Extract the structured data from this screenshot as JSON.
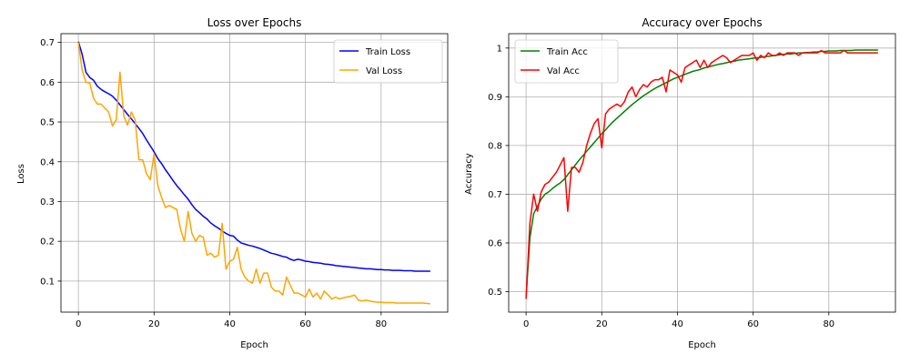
{
  "chart_data": [
    {
      "type": "line",
      "title": "Loss over Epochs",
      "xlabel": "Epoch",
      "ylabel": "Loss",
      "xlim": [
        -4.6,
        97.6
      ],
      "ylim": [
        0.022,
        0.722
      ],
      "xticks": [
        0,
        20,
        40,
        60,
        80
      ],
      "yticks": [
        0.1,
        0.2,
        0.3,
        0.4,
        0.5,
        0.6,
        0.7
      ],
      "grid": true,
      "legend": "top-right",
      "x": [
        0,
        1,
        2,
        3,
        4,
        5,
        6,
        7,
        8,
        9,
        10,
        11,
        12,
        13,
        14,
        15,
        16,
        17,
        18,
        19,
        20,
        21,
        22,
        23,
        24,
        25,
        26,
        27,
        28,
        29,
        30,
        31,
        32,
        33,
        34,
        35,
        36,
        37,
        38,
        39,
        40,
        41,
        42,
        43,
        44,
        45,
        46,
        47,
        48,
        49,
        50,
        51,
        52,
        53,
        54,
        55,
        56,
        57,
        58,
        59,
        60,
        61,
        62,
        63,
        64,
        65,
        66,
        67,
        68,
        69,
        70,
        71,
        72,
        73,
        74,
        75,
        76,
        77,
        78,
        79,
        80,
        81,
        82,
        83,
        84,
        85,
        86,
        87,
        88,
        89,
        90,
        91,
        92,
        93
      ],
      "series": [
        {
          "name": "Train Loss",
          "color": "#0000ff",
          "values": [
            0.702,
            0.67,
            0.625,
            0.612,
            0.605,
            0.59,
            0.582,
            0.576,
            0.571,
            0.565,
            0.555,
            0.543,
            0.531,
            0.519,
            0.508,
            0.496,
            0.484,
            0.471,
            0.455,
            0.44,
            0.425,
            0.408,
            0.395,
            0.38,
            0.367,
            0.353,
            0.34,
            0.329,
            0.317,
            0.306,
            0.292,
            0.28,
            0.272,
            0.263,
            0.256,
            0.246,
            0.239,
            0.233,
            0.226,
            0.22,
            0.215,
            0.213,
            0.203,
            0.196,
            0.193,
            0.19,
            0.188,
            0.185,
            0.182,
            0.178,
            0.174,
            0.17,
            0.168,
            0.165,
            0.162,
            0.16,
            0.155,
            0.152,
            0.155,
            0.153,
            0.15,
            0.149,
            0.147,
            0.146,
            0.145,
            0.143,
            0.142,
            0.141,
            0.139,
            0.138,
            0.137,
            0.136,
            0.135,
            0.134,
            0.133,
            0.132,
            0.131,
            0.131,
            0.13,
            0.129,
            0.129,
            0.128,
            0.128,
            0.127,
            0.127,
            0.127,
            0.126,
            0.126,
            0.126,
            0.125,
            0.125,
            0.125,
            0.125,
            0.125
          ]
        },
        {
          "name": "Val Loss",
          "color": "#ffa500",
          "values": [
            0.7,
            0.63,
            0.6,
            0.598,
            0.56,
            0.545,
            0.545,
            0.535,
            0.525,
            0.49,
            0.505,
            0.625,
            0.515,
            0.492,
            0.525,
            0.505,
            0.405,
            0.405,
            0.37,
            0.355,
            0.42,
            0.34,
            0.31,
            0.285,
            0.29,
            0.285,
            0.28,
            0.23,
            0.2,
            0.275,
            0.22,
            0.2,
            0.215,
            0.21,
            0.165,
            0.17,
            0.16,
            0.165,
            0.245,
            0.13,
            0.15,
            0.155,
            0.185,
            0.13,
            0.11,
            0.1,
            0.095,
            0.13,
            0.095,
            0.12,
            0.12,
            0.085,
            0.075,
            0.075,
            0.065,
            0.11,
            0.09,
            0.07,
            0.07,
            0.065,
            0.06,
            0.08,
            0.06,
            0.07,
            0.055,
            0.075,
            0.065,
            0.055,
            0.06,
            0.055,
            0.058,
            0.06,
            0.062,
            0.065,
            0.052,
            0.05,
            0.052,
            0.05,
            0.048,
            0.047,
            0.047,
            0.046,
            0.046,
            0.046,
            0.045,
            0.045,
            0.045,
            0.045,
            0.045,
            0.045,
            0.045,
            0.045,
            0.044,
            0.043
          ]
        }
      ]
    },
    {
      "type": "line",
      "title": "Accuracy over Epochs",
      "xlabel": "Epoch",
      "ylabel": "Accuracy",
      "xlim": [
        -4.6,
        97.6
      ],
      "ylim": [
        0.458,
        1.0295
      ],
      "xticks": [
        0,
        20,
        40,
        60,
        80
      ],
      "yticks": [
        0.5,
        0.6,
        0.7,
        0.8,
        0.9,
        1.0
      ],
      "grid": true,
      "legend": "top-left",
      "x": [
        0,
        1,
        2,
        3,
        4,
        5,
        6,
        7,
        8,
        9,
        10,
        11,
        12,
        13,
        14,
        15,
        16,
        17,
        18,
        19,
        20,
        21,
        22,
        23,
        24,
        25,
        26,
        27,
        28,
        29,
        30,
        31,
        32,
        33,
        34,
        35,
        36,
        37,
        38,
        39,
        40,
        41,
        42,
        43,
        44,
        45,
        46,
        47,
        48,
        49,
        50,
        51,
        52,
        53,
        54,
        55,
        56,
        57,
        58,
        59,
        60,
        61,
        62,
        63,
        64,
        65,
        66,
        67,
        68,
        69,
        70,
        71,
        72,
        73,
        74,
        75,
        76,
        77,
        78,
        79,
        80,
        81,
        82,
        83,
        84,
        85,
        86,
        87,
        88,
        89,
        90,
        91,
        92,
        93
      ],
      "series": [
        {
          "name": "Train Acc",
          "color": "#008000",
          "values": [
            0.49,
            0.61,
            0.66,
            0.675,
            0.69,
            0.7,
            0.705,
            0.712,
            0.718,
            0.723,
            0.73,
            0.74,
            0.75,
            0.76,
            0.77,
            0.779,
            0.788,
            0.797,
            0.806,
            0.815,
            0.824,
            0.832,
            0.841,
            0.849,
            0.856,
            0.863,
            0.87,
            0.877,
            0.884,
            0.89,
            0.896,
            0.902,
            0.907,
            0.912,
            0.917,
            0.921,
            0.925,
            0.929,
            0.933,
            0.937,
            0.94,
            0.943,
            0.946,
            0.949,
            0.952,
            0.954,
            0.956,
            0.959,
            0.961,
            0.963,
            0.965,
            0.967,
            0.968,
            0.97,
            0.972,
            0.973,
            0.975,
            0.976,
            0.977,
            0.978,
            0.979,
            0.98,
            0.981,
            0.982,
            0.983,
            0.984,
            0.985,
            0.986,
            0.987,
            0.988,
            0.988,
            0.989,
            0.99,
            0.99,
            0.991,
            0.991,
            0.992,
            0.992,
            0.993,
            0.993,
            0.994,
            0.994,
            0.994,
            0.995,
            0.995,
            0.995,
            0.995,
            0.996,
            0.996,
            0.996,
            0.996,
            0.996,
            0.996,
            0.996
          ]
        },
        {
          "name": "Val Acc",
          "color": "#ff0000",
          "values": [
            0.485,
            0.64,
            0.7,
            0.665,
            0.705,
            0.72,
            0.725,
            0.735,
            0.745,
            0.76,
            0.775,
            0.665,
            0.755,
            0.755,
            0.745,
            0.765,
            0.8,
            0.825,
            0.845,
            0.855,
            0.795,
            0.865,
            0.875,
            0.88,
            0.885,
            0.88,
            0.89,
            0.91,
            0.92,
            0.9,
            0.915,
            0.925,
            0.92,
            0.93,
            0.935,
            0.935,
            0.94,
            0.91,
            0.955,
            0.95,
            0.945,
            0.93,
            0.96,
            0.965,
            0.97,
            0.975,
            0.96,
            0.975,
            0.96,
            0.97,
            0.975,
            0.98,
            0.985,
            0.98,
            0.97,
            0.975,
            0.98,
            0.985,
            0.985,
            0.985,
            0.99,
            0.975,
            0.985,
            0.98,
            0.99,
            0.985,
            0.985,
            0.99,
            0.985,
            0.99,
            0.99,
            0.99,
            0.985,
            0.99,
            0.99,
            0.99,
            0.99,
            0.99,
            0.995,
            0.99,
            0.99,
            0.99,
            0.99,
            0.99,
            0.995,
            0.99,
            0.99,
            0.99,
            0.99,
            0.99,
            0.99,
            0.99,
            0.99,
            0.99
          ]
        }
      ]
    }
  ]
}
